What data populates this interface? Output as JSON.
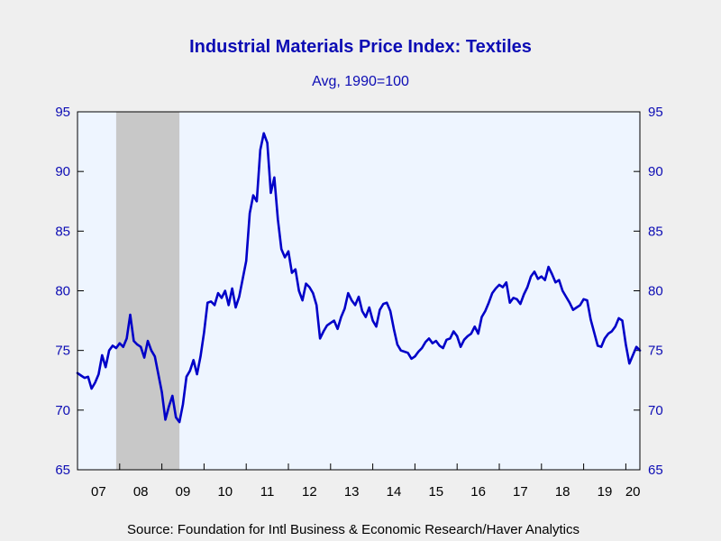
{
  "chart_data": {
    "type": "line",
    "title": "Industrial Materials Price Index: Textiles",
    "subtitle": "Avg, 1990=100",
    "source": "Source:  Foundation for Intl Business & Economic Research/Haver Analytics",
    "xlabel": "",
    "ylabel": "",
    "xlim": [
      "2007-01",
      "2020-05"
    ],
    "ylim": [
      65,
      95
    ],
    "yticks": [
      95,
      90,
      85,
      80,
      75,
      70,
      65
    ],
    "ytick_labels": [
      "95",
      "90",
      "85",
      "80",
      "75",
      "70",
      "65"
    ],
    "xtick_labels": [
      "07",
      "08",
      "09",
      "10",
      "11",
      "12",
      "13",
      "14",
      "15",
      "16",
      "17",
      "18",
      "19",
      "20"
    ],
    "xtick_years": [
      2007,
      2008,
      2009,
      2010,
      2011,
      2012,
      2013,
      2014,
      2015,
      2016,
      2017,
      2018,
      2019,
      2020
    ],
    "recession_band": {
      "start": "2007-12",
      "end": "2009-06"
    },
    "colors": {
      "line": "#0000c8",
      "plot_bg": "#eef5ff",
      "recession": "#c8c8c8",
      "text": "#0c0cb4",
      "frame": "#000000"
    },
    "grid": false,
    "legend": "none",
    "series": [
      {
        "x": [
          "2007-01",
          "2007-02",
          "2007-03",
          "2007-04",
          "2007-05",
          "2007-06",
          "2007-07",
          "2007-08",
          "2007-09",
          "2007-10",
          "2007-11",
          "2007-12",
          "2008-01",
          "2008-02",
          "2008-03",
          "2008-04",
          "2008-05",
          "2008-06",
          "2008-07",
          "2008-08",
          "2008-09",
          "2008-10",
          "2008-11",
          "2008-12",
          "2009-01",
          "2009-02",
          "2009-03",
          "2009-04",
          "2009-05",
          "2009-06",
          "2009-07",
          "2009-08",
          "2009-09",
          "2009-10",
          "2009-11",
          "2009-12",
          "2010-01",
          "2010-02",
          "2010-03",
          "2010-04",
          "2010-05",
          "2010-06",
          "2010-07",
          "2010-08",
          "2010-09",
          "2010-10",
          "2010-11",
          "2010-12",
          "2011-01",
          "2011-02",
          "2011-03",
          "2011-04",
          "2011-05",
          "2011-06",
          "2011-07",
          "2011-08",
          "2011-09",
          "2011-10",
          "2011-11",
          "2011-12",
          "2012-01",
          "2012-02",
          "2012-03",
          "2012-04",
          "2012-05",
          "2012-06",
          "2012-07",
          "2012-08",
          "2012-09",
          "2012-10",
          "2012-11",
          "2012-12",
          "2013-01",
          "2013-02",
          "2013-03",
          "2013-04",
          "2013-05",
          "2013-06",
          "2013-07",
          "2013-08",
          "2013-09",
          "2013-10",
          "2013-11",
          "2013-12",
          "2014-01",
          "2014-02",
          "2014-03",
          "2014-04",
          "2014-05",
          "2014-06",
          "2014-07",
          "2014-08",
          "2014-09",
          "2014-10",
          "2014-11",
          "2014-12",
          "2015-01",
          "2015-02",
          "2015-03",
          "2015-04",
          "2015-05",
          "2015-06",
          "2015-07",
          "2015-08",
          "2015-09",
          "2015-10",
          "2015-11",
          "2015-12",
          "2016-01",
          "2016-02",
          "2016-03",
          "2016-04",
          "2016-05",
          "2016-06",
          "2016-07",
          "2016-08",
          "2016-09",
          "2016-10",
          "2016-11",
          "2016-12",
          "2017-01",
          "2017-02",
          "2017-03",
          "2017-04",
          "2017-05",
          "2017-06",
          "2017-07",
          "2017-08",
          "2017-09",
          "2017-10",
          "2017-11",
          "2017-12",
          "2018-01",
          "2018-02",
          "2018-03",
          "2018-04",
          "2018-05",
          "2018-06",
          "2018-07",
          "2018-08",
          "2018-09",
          "2018-10",
          "2018-11",
          "2018-12",
          "2019-01",
          "2019-02",
          "2019-03",
          "2019-04",
          "2019-05",
          "2019-06",
          "2019-07",
          "2019-08",
          "2019-09",
          "2019-10",
          "2019-11",
          "2019-12",
          "2020-01",
          "2020-02",
          "2020-03",
          "2020-04",
          "2020-05"
        ],
        "values": [
          73.1,
          72.9,
          72.7,
          72.8,
          71.8,
          72.3,
          73.0,
          74.6,
          73.6,
          75.0,
          75.4,
          75.2,
          75.6,
          75.3,
          76.0,
          78.0,
          75.8,
          75.5,
          75.3,
          74.4,
          75.8,
          75.0,
          74.5,
          73.0,
          71.5,
          69.2,
          70.3,
          71.2,
          69.4,
          69.0,
          70.5,
          72.8,
          73.3,
          74.2,
          73.0,
          74.5,
          76.5,
          79.0,
          79.1,
          78.8,
          79.8,
          79.4,
          80.0,
          78.8,
          80.2,
          78.6,
          79.5,
          81.0,
          82.5,
          86.5,
          88.0,
          87.5,
          91.8,
          93.2,
          92.4,
          88.2,
          89.5,
          86.0,
          83.5,
          82.8,
          83.3,
          81.5,
          81.8,
          80.0,
          79.2,
          80.6,
          80.3,
          79.8,
          78.8,
          76.0,
          76.6,
          77.1,
          77.3,
          77.5,
          76.8,
          77.8,
          78.5,
          79.8,
          79.2,
          78.8,
          79.5,
          78.3,
          77.8,
          78.6,
          77.5,
          77.0,
          78.4,
          78.9,
          79.0,
          78.3,
          76.8,
          75.5,
          75.0,
          74.9,
          74.8,
          74.3,
          74.5,
          74.9,
          75.2,
          75.7,
          76.0,
          75.6,
          75.8,
          75.4,
          75.2,
          75.9,
          76.0,
          76.6,
          76.2,
          75.3,
          75.9,
          76.2,
          76.4,
          77.0,
          76.4,
          77.8,
          78.3,
          79.0,
          79.8,
          80.2,
          80.5,
          80.3,
          80.7,
          79.0,
          79.4,
          79.3,
          78.9,
          79.7,
          80.3,
          81.2,
          81.6,
          81.0,
          81.2,
          80.9,
          82.0,
          81.4,
          80.7,
          80.9,
          80.0,
          79.5,
          79.0,
          78.4,
          78.6,
          78.8,
          79.3,
          79.2,
          77.6,
          76.5,
          75.4,
          75.3,
          76.0,
          76.4,
          76.6,
          77.0,
          77.7,
          77.5,
          75.5,
          73.9,
          74.6,
          75.3,
          75.0
        ]
      }
    ]
  }
}
